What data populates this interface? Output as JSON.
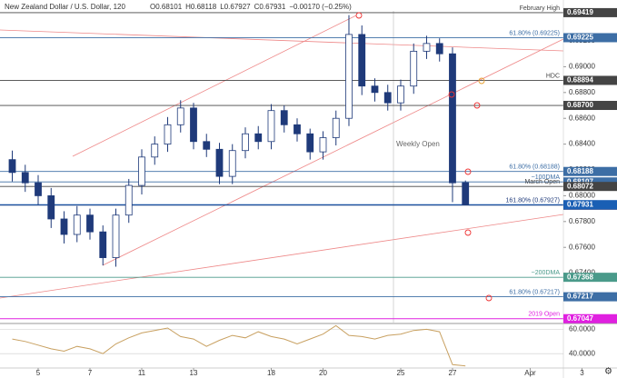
{
  "chart_data": {
    "type": "candlestick",
    "title": "New Zealand Dollar / U.S. Dollar, 120",
    "quote": [
      "O0.68101",
      "H0.68118",
      "L0.67927",
      "C0.67931",
      "−0.00170 (−0.25%)"
    ],
    "color": "#1f3a7a",
    "x": [
      -1,
      -0.5,
      0,
      0.5,
      1,
      1.5,
      2,
      2.5,
      3,
      3.5,
      4,
      4.5,
      5,
      5.5,
      6,
      6.5,
      7,
      7.5,
      8,
      8.5,
      9,
      9.5,
      10,
      10.5,
      11,
      11.5,
      12,
      12.5,
      13,
      13.5,
      14,
      14.5,
      15,
      15.5,
      16,
      16.5
    ],
    "open": [
      0.6828,
      0.6818,
      0.681,
      0.68,
      0.6782,
      0.677,
      0.6785,
      0.6772,
      0.6752,
      0.6785,
      0.6808,
      0.683,
      0.684,
      0.6855,
      0.6868,
      0.6842,
      0.6836,
      0.6815,
      0.6835,
      0.6848,
      0.6842,
      0.6866,
      0.6855,
      0.6848,
      0.6834,
      0.6845,
      0.686,
      0.6925,
      0.6885,
      0.688,
      0.6872,
      0.6885,
      0.6912,
      0.6918,
      0.691,
      0.68101
    ],
    "high": [
      0.6835,
      0.6824,
      0.6816,
      0.6806,
      0.6788,
      0.6792,
      0.679,
      0.6777,
      0.679,
      0.6813,
      0.6836,
      0.6846,
      0.6861,
      0.6874,
      0.6872,
      0.6848,
      0.6841,
      0.684,
      0.6853,
      0.6854,
      0.6871,
      0.687,
      0.686,
      0.6852,
      0.685,
      0.6866,
      0.694,
      0.6932,
      0.6891,
      0.6886,
      0.689,
      0.6918,
      0.6924,
      0.6922,
      0.6915,
      0.68118
    ],
    "low": [
      0.6811,
      0.6803,
      0.6793,
      0.6775,
      0.6763,
      0.6764,
      0.6766,
      0.6746,
      0.6745,
      0.6779,
      0.6801,
      0.6824,
      0.6834,
      0.6849,
      0.6836,
      0.683,
      0.6809,
      0.6809,
      0.6829,
      0.6836,
      0.6836,
      0.6849,
      0.6842,
      0.6828,
      0.6828,
      0.6839,
      0.6854,
      0.6878,
      0.6873,
      0.6866,
      0.6866,
      0.6879,
      0.6906,
      0.6904,
      0.6795,
      0.67927
    ],
    "close": [
      0.6818,
      0.681,
      0.68,
      0.6782,
      0.677,
      0.6785,
      0.6772,
      0.6752,
      0.6785,
      0.6808,
      0.683,
      0.684,
      0.6855,
      0.6868,
      0.6842,
      0.6836,
      0.6815,
      0.6835,
      0.6848,
      0.6842,
      0.6866,
      0.6855,
      0.6848,
      0.6834,
      0.6845,
      0.686,
      0.6925,
      0.6885,
      0.688,
      0.6872,
      0.6885,
      0.6912,
      0.6918,
      0.691,
      0.681,
      0.67931
    ],
    "xlim": [
      -1.474,
      21.51
    ],
    "xticks": [
      {
        "value": 0,
        "label": "5"
      },
      {
        "value": 2,
        "label": "7"
      },
      {
        "value": 4,
        "label": "11"
      },
      {
        "value": 6,
        "label": "13"
      },
      {
        "value": 9,
        "label": "18"
      },
      {
        "value": 11,
        "label": "20"
      },
      {
        "value": 14,
        "label": "25"
      },
      {
        "value": 16,
        "label": "27"
      },
      {
        "value": 19,
        "label": "Apr"
      },
      {
        "value": 21,
        "label": "3"
      }
    ],
    "ylim": [
      0.67017,
      0.69517
    ],
    "yticks": [
      {
        "value": 0.692,
        "label": "0.69200"
      },
      {
        "value": 0.69,
        "label": "0.69000"
      },
      {
        "value": 0.688,
        "label": "0.68800"
      },
      {
        "value": 0.686,
        "label": "0.68600"
      },
      {
        "value": 0.684,
        "label": "0.68400"
      },
      {
        "value": 0.682,
        "label": "0.68200"
      },
      {
        "value": 0.68,
        "label": "0.68000"
      },
      {
        "value": 0.678,
        "label": "0.67800"
      },
      {
        "value": 0.676,
        "label": "0.67600"
      },
      {
        "value": 0.674,
        "label": "0.67400"
      },
      {
        "value": 0.672,
        "label": "0.67200"
      }
    ],
    "levels": [
      {
        "name": "February High",
        "value": 0.69419,
        "label": "0.69419",
        "color": "#444444"
      },
      {
        "name": "61.80% (0.69225)",
        "value": 0.69225,
        "label": "0.69225",
        "color": "#3d6ea5"
      },
      {
        "name": "HDC",
        "value": 0.68894,
        "label": "0.68894",
        "color": "#444444"
      },
      {
        "name": null,
        "value": 0.687,
        "label": "0.68700",
        "color": "#444444"
      },
      {
        "name": "61.80% (0.68188)",
        "value": 0.68188,
        "label": "0.68188",
        "color": "#3d6ea5"
      },
      {
        "name": "~100DMA",
        "value": 0.68107,
        "label": "0.68107",
        "color": "#3d6ea5"
      },
      {
        "name": "March Open",
        "value": 0.68072,
        "label": "0.68072",
        "color": "#444444"
      },
      {
        "name": "161.80% (0.67927)",
        "value": 0.67927,
        "label": "0.67927",
        "color": "#1f3a7a"
      },
      {
        "name": null,
        "value": 0.67931,
        "label": "0.67931",
        "color": "#1a5fb4"
      },
      {
        "name": "~200DMA",
        "value": 0.67368,
        "label": "0.67368",
        "color": "#4a9a8a"
      },
      {
        "name": "61.80% (0.67217)",
        "value": 0.67217,
        "label": "0.67217",
        "color": "#3d6ea5"
      },
      {
        "name": "2019 Open",
        "value": 0.67047,
        "label": "0.67047",
        "color": "#e020e0"
      }
    ],
    "annotations": [
      "Weekly Open"
    ],
    "rsi": {
      "values": [
        52,
        50,
        47,
        44,
        42,
        46,
        44,
        40,
        48,
        53,
        57,
        59,
        61,
        54,
        52,
        46,
        51,
        55,
        53,
        58,
        54,
        52,
        48,
        52,
        56,
        63,
        55,
        54,
        52,
        55,
        56,
        59,
        60,
        58,
        31,
        30
      ],
      "color": "#c8a060",
      "ylim": [
        29,
        64
      ],
      "yticks": [
        {
          "value": 60,
          "label": "60.0000"
        },
        {
          "value": 40,
          "label": "40.0000"
        }
      ]
    }
  }
}
